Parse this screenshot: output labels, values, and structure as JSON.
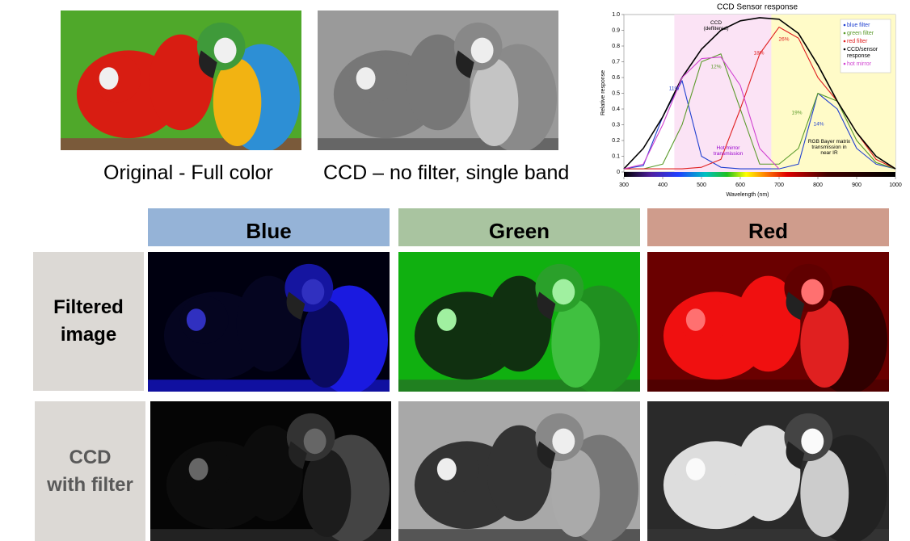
{
  "captions": {
    "original": "Original - Full color",
    "ccd": "CCD – no filter, single band"
  },
  "grid": {
    "columns": [
      "Blue",
      "Green",
      "Red"
    ],
    "rows": [
      "Filtered\nimage",
      "CCD\nwith filter"
    ]
  },
  "chart_data": {
    "type": "line",
    "title": "CCD Sensor response",
    "x_label": "Wavelength (nm)",
    "y_label": "Relative response",
    "x": [
      300,
      350,
      400,
      450,
      500,
      550,
      600,
      650,
      700,
      750,
      800,
      850,
      900,
      950,
      1000
    ],
    "series": [
      {
        "name": "blue filter",
        "color": "#1f3fd0",
        "values": [
          0.02,
          0.04,
          0.35,
          0.58,
          0.1,
          0.03,
          0.02,
          0.02,
          0.02,
          0.05,
          0.5,
          0.4,
          0.15,
          0.05,
          0.02
        ]
      },
      {
        "name": "green filter",
        "color": "#5a9a2a",
        "values": [
          0.02,
          0.02,
          0.05,
          0.3,
          0.7,
          0.75,
          0.4,
          0.05,
          0.05,
          0.15,
          0.5,
          0.45,
          0.2,
          0.06,
          0.02
        ]
      },
      {
        "name": "red filter",
        "color": "#e02020",
        "values": [
          0.02,
          0.02,
          0.02,
          0.02,
          0.03,
          0.08,
          0.4,
          0.75,
          0.92,
          0.85,
          0.6,
          0.45,
          0.25,
          0.08,
          0.02
        ]
      },
      {
        "name": "CCD/sensor response",
        "color": "#000000",
        "values": [
          0.02,
          0.15,
          0.35,
          0.6,
          0.78,
          0.9,
          0.96,
          0.98,
          0.97,
          0.88,
          0.68,
          0.45,
          0.25,
          0.1,
          0.02
        ]
      },
      {
        "name": "hot mirror",
        "color": "#d040d0",
        "values": [
          0.02,
          0.05,
          0.3,
          0.6,
          0.72,
          0.73,
          0.55,
          0.15,
          0.02,
          null,
          null,
          null,
          null,
          null,
          null
        ]
      }
    ],
    "xlim": [
      300,
      1000
    ],
    "ylim": [
      0,
      1
    ],
    "xticks": [
      300,
      400,
      500,
      600,
      700,
      800,
      900,
      1000
    ],
    "yticks": [
      0,
      0.1,
      0.2,
      0.3,
      0.4,
      0.5,
      0.6,
      0.7,
      0.8,
      0.9,
      {
        "value": 1,
        "label": "1.0"
      }
    ],
    "shaded": [
      {
        "from": 430,
        "to": 680,
        "color": "#fbe3f5"
      },
      {
        "from": 680,
        "to": 1000,
        "color": "#fffbc8"
      }
    ],
    "annotations": [
      "CCD\n(deflitered)",
      "11%",
      "12%",
      "18%",
      "26%",
      "19%",
      "14%",
      "Hot mirror\ntransmission",
      "RGB Bayer matrix\ntransmission in\nnear IR"
    ]
  }
}
